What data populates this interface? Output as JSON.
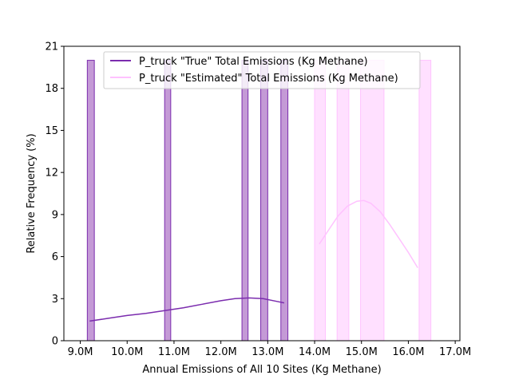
{
  "chart_data": {
    "type": "histogram",
    "xlabel": "Annual Emissions of All 10 Sites (Kg Methane)",
    "ylabel": "Relative Frequency (%)",
    "xlim": [
      8.65,
      17.1
    ],
    "ylim": [
      0,
      21
    ],
    "x_ticks": [
      9.0,
      10.0,
      11.0,
      12.0,
      13.0,
      14.0,
      15.0,
      16.0,
      17.0
    ],
    "x_tick_labels": [
      "9.0M",
      "10.0M",
      "11.0M",
      "12.0M",
      "13.0M",
      "14.0M",
      "15.0M",
      "16.0M",
      "17.0M"
    ],
    "y_ticks": [
      0,
      3,
      6,
      9,
      12,
      15,
      18,
      21
    ],
    "y_tick_labels": [
      "0",
      "3",
      "6",
      "9",
      "12",
      "15",
      "18",
      "21"
    ],
    "grid": false,
    "legend_position": "top-center",
    "series": [
      {
        "name": "P_truck \"True\" Total Emissions (Kg Methane)",
        "color": "#7b2cae",
        "bar_fill": "#c49ad6",
        "bars": [
          {
            "x0": 9.15,
            "x1": 9.3,
            "value": 20
          },
          {
            "x0": 10.8,
            "x1": 10.93,
            "value": 20
          },
          {
            "x0": 12.45,
            "x1": 12.58,
            "value": 20
          },
          {
            "x0": 12.85,
            "x1": 13.0,
            "value": 20
          },
          {
            "x0": 13.28,
            "x1": 13.43,
            "value": 20
          }
        ],
        "kde": {
          "x": [
            9.2,
            9.6,
            10.0,
            10.4,
            10.8,
            11.2,
            11.6,
            12.0,
            12.3,
            12.6,
            12.9,
            13.2,
            13.35
          ],
          "y": [
            1.4,
            1.6,
            1.8,
            1.95,
            2.15,
            2.35,
            2.6,
            2.85,
            3.0,
            3.05,
            3.0,
            2.8,
            2.7
          ]
        }
      },
      {
        "name": "P_truck \"Estimated\" Total Emissions (Kg Methane)",
        "color": "#ffc2ff",
        "bar_fill": "#ffe0ff",
        "bars": [
          {
            "x0": 14.0,
            "x1": 14.23,
            "value": 20
          },
          {
            "x0": 14.48,
            "x1": 14.73,
            "value": 20
          },
          {
            "x0": 14.98,
            "x1": 15.48,
            "value": 20
          },
          {
            "x0": 16.23,
            "x1": 16.48,
            "value": 20
          }
        ],
        "kde": {
          "x": [
            14.1,
            14.3,
            14.5,
            14.7,
            14.9,
            15.05,
            15.2,
            15.4,
            15.6,
            15.8,
            16.0,
            16.2
          ],
          "y": [
            6.9,
            7.9,
            8.9,
            9.6,
            9.95,
            10.0,
            9.8,
            9.2,
            8.3,
            7.3,
            6.3,
            5.2
          ]
        }
      }
    ]
  }
}
